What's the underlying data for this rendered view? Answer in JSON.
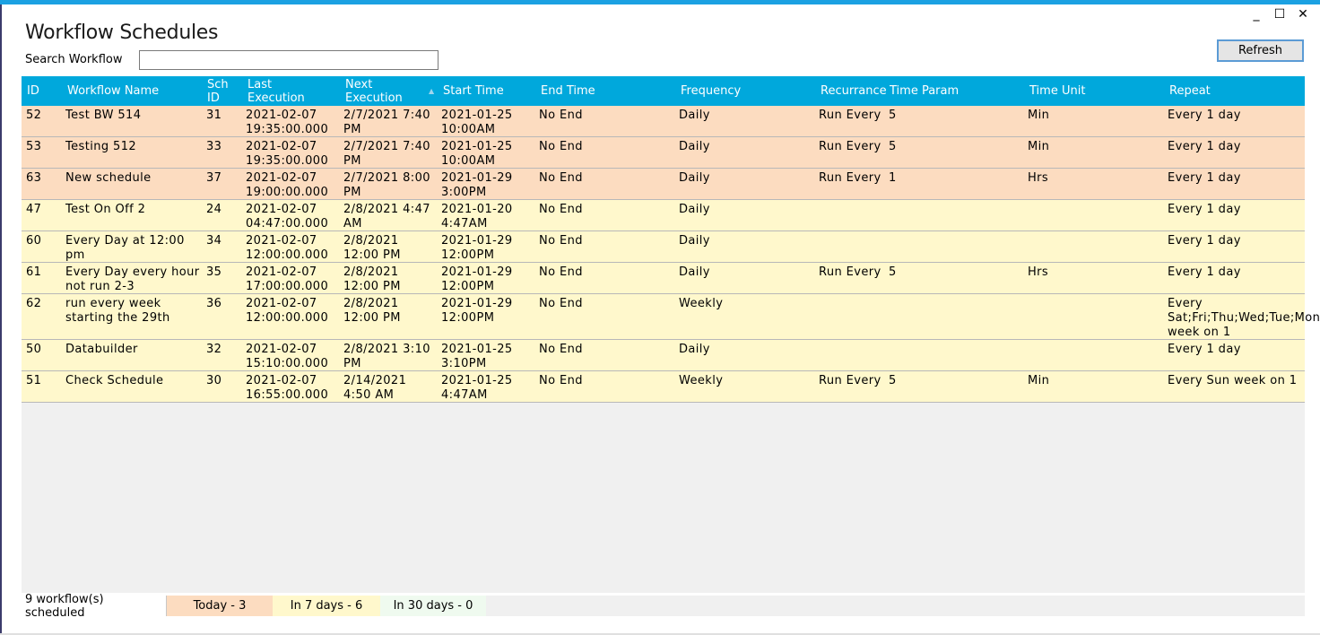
{
  "window": {
    "title": "Workflow Schedules",
    "controls": {
      "minimize": "_",
      "maximize": "☐",
      "close": "✕"
    }
  },
  "search": {
    "label": "Search Workflow",
    "value": "",
    "placeholder": ""
  },
  "refresh_label": "Refresh",
  "table": {
    "columns": [
      {
        "key": "id",
        "label": "ID"
      },
      {
        "key": "name",
        "label": "Workflow Name"
      },
      {
        "key": "sch_id",
        "label": "Sch\nID"
      },
      {
        "key": "last",
        "label": "Last\nExecution"
      },
      {
        "key": "next",
        "label": "Next\nExecution"
      },
      {
        "key": "start",
        "label": "Start Time"
      },
      {
        "key": "end",
        "label": "End Time"
      },
      {
        "key": "freq",
        "label": "Frequency"
      },
      {
        "key": "recur",
        "label": "Recurrance"
      },
      {
        "key": "tparam",
        "label": "Time Param"
      },
      {
        "key": "tunit",
        "label": "Time Unit"
      },
      {
        "key": "repeat",
        "label": "Repeat"
      }
    ],
    "sorted_column": "next",
    "rows": [
      {
        "status": "today",
        "id": "52",
        "name": "Test BW 514",
        "sch_id": "31",
        "last": "2021-02-07 19:35:00.000",
        "next": "2/7/2021 7:40 PM",
        "start": "2021-01-25 10:00AM",
        "end": "No End",
        "freq": "Daily",
        "recur": "Run Every",
        "tparam": "5",
        "tunit": "Min",
        "repeat": "Every 1 day"
      },
      {
        "status": "today",
        "id": "53",
        "name": "Testing 512",
        "sch_id": "33",
        "last": "2021-02-07 19:35:00.000",
        "next": "2/7/2021 7:40 PM",
        "start": "2021-01-25 10:00AM",
        "end": "No End",
        "freq": "Daily",
        "recur": "Run Every",
        "tparam": "5",
        "tunit": "Min",
        "repeat": "Every 1 day"
      },
      {
        "status": "today",
        "id": "63",
        "name": "New schedule",
        "sch_id": "37",
        "last": "2021-02-07 19:00:00.000",
        "next": "2/7/2021 8:00 PM",
        "start": "2021-01-29 3:00PM",
        "end": "No End",
        "freq": "Daily",
        "recur": "Run Every",
        "tparam": "1",
        "tunit": "Hrs",
        "repeat": "Every 1 day"
      },
      {
        "status": "week",
        "id": "47",
        "name": "Test On Off 2",
        "sch_id": "24",
        "last": "2021-02-07 04:47:00.000",
        "next": "2/8/2021 4:47 AM",
        "start": "2021-01-20 4:47AM",
        "end": "No End",
        "freq": "Daily",
        "recur": "",
        "tparam": "",
        "tunit": "",
        "repeat": "Every 1 day"
      },
      {
        "status": "week",
        "id": "60",
        "name": "Every Day at 12:00 pm",
        "sch_id": "34",
        "last": "2021-02-07 12:00:00.000",
        "next": "2/8/2021 12:00 PM",
        "start": "2021-01-29 12:00PM",
        "end": "No End",
        "freq": "Daily",
        "recur": "",
        "tparam": "",
        "tunit": "",
        "repeat": "Every 1 day"
      },
      {
        "status": "week",
        "id": "61",
        "name": "Every Day every hour not run 2-3",
        "sch_id": "35",
        "last": "2021-02-07 17:00:00.000",
        "next": "2/8/2021 12:00 PM",
        "start": "2021-01-29 12:00PM",
        "end": "No End",
        "freq": "Daily",
        "recur": "Run Every",
        "tparam": "5",
        "tunit": "Hrs",
        "repeat": "Every 1 day"
      },
      {
        "status": "week",
        "id": "62",
        "name": "run every week starting the 29th",
        "sch_id": "36",
        "last": "2021-02-07 12:00:00.000",
        "next": "2/8/2021 12:00 PM",
        "start": "2021-01-29 12:00PM",
        "end": "No End",
        "freq": "Weekly",
        "recur": "",
        "tparam": "",
        "tunit": "",
        "repeat": "Every Sat;Fri;Thu;Wed;Tue;Mon week on 1"
      },
      {
        "status": "week",
        "id": "50",
        "name": "Databuilder",
        "sch_id": "32",
        "last": "2021-02-07 15:10:00.000",
        "next": "2/8/2021 3:10 PM",
        "start": "2021-01-25 3:10PM",
        "end": "No End",
        "freq": "Daily",
        "recur": "",
        "tparam": "",
        "tunit": "",
        "repeat": "Every 1 day"
      },
      {
        "status": "week",
        "id": "51",
        "name": "Check Schedule",
        "sch_id": "30",
        "last": "2021-02-07 16:55:00.000",
        "next": "2/14/2021 4:50 AM",
        "start": "2021-01-25 4:47AM",
        "end": "No End",
        "freq": "Weekly",
        "recur": "Run Every",
        "tparam": "5",
        "tunit": "Min",
        "repeat": "Every Sun week on 1"
      }
    ]
  },
  "status_bar": {
    "count": "9 workflow(s) scheduled",
    "today": "Today - 3",
    "week": "In 7 days - 6",
    "month": "In 30 days - 0"
  },
  "colors": {
    "header": "#00a8dc",
    "today_row": "#fcdcc0",
    "week_row": "#fff8cc",
    "month_row": "#effaef"
  }
}
